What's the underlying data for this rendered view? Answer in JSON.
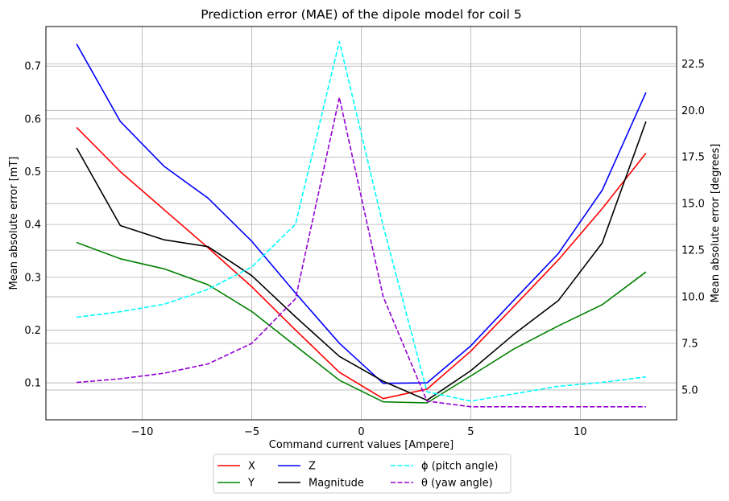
{
  "chart_data": {
    "type": "line",
    "title": "Prediction error (MAE) of the dipole model for coil 5",
    "xlabel": "Command current values [Ampere]",
    "ylabel": "Mean absolute error [mT]",
    "y2label": "Mean absolute error [degrees]",
    "xlim": [
      -14.4,
      14.4
    ],
    "ylim": [
      0.03,
      0.775
    ],
    "y2lim": [
      3.4,
      24.5
    ],
    "xticks": [
      -10,
      -5,
      0,
      5,
      10
    ],
    "xtick_labels": [
      "−10",
      "−5",
      "0",
      "5",
      "10"
    ],
    "yticks": [
      0.1,
      0.2,
      0.3,
      0.4,
      0.5,
      0.6,
      0.7
    ],
    "ytick_labels": [
      "0.1",
      "0.2",
      "0.3",
      "0.4",
      "0.5",
      "0.6",
      "0.7"
    ],
    "y2ticks": [
      5.0,
      7.5,
      10.0,
      12.5,
      15.0,
      17.5,
      20.0,
      22.5
    ],
    "y2tick_labels": [
      "5.0",
      "7.5",
      "10.0",
      "12.5",
      "15.0",
      "17.5",
      "20.0",
      "22.5"
    ],
    "grid": true,
    "legend_position": "below",
    "x": [
      -13,
      -11,
      -9,
      -7,
      -5,
      -3,
      -1,
      1,
      3,
      5,
      7,
      9,
      11,
      13
    ],
    "series": [
      {
        "name": "X",
        "axis": "left",
        "color": "#ff0000",
        "dash": "solid",
        "values": [
          0.584,
          0.5,
          0.428,
          0.356,
          0.282,
          0.2,
          0.12,
          0.07,
          0.088,
          0.16,
          0.246,
          0.333,
          0.43,
          0.535
        ]
      },
      {
        "name": "Y",
        "axis": "left",
        "color": "#008000",
        "dash": "solid",
        "values": [
          0.366,
          0.335,
          0.316,
          0.286,
          0.235,
          0.17,
          0.105,
          0.064,
          0.062,
          0.113,
          0.165,
          0.208,
          0.248,
          0.31
        ]
      },
      {
        "name": "Z",
        "axis": "left",
        "color": "#0000ff",
        "dash": "solid",
        "values": [
          0.742,
          0.595,
          0.51,
          0.45,
          0.368,
          0.27,
          0.175,
          0.099,
          0.1,
          0.17,
          0.258,
          0.345,
          0.465,
          0.65
        ]
      },
      {
        "name": "Magnitude",
        "axis": "left",
        "color": "#000000",
        "dash": "solid",
        "values": [
          0.545,
          0.398,
          0.371,
          0.358,
          0.303,
          0.225,
          0.15,
          0.103,
          0.067,
          0.123,
          0.193,
          0.256,
          0.365,
          0.595
        ]
      },
      {
        "name": "ϕ (pitch angle)",
        "axis": "right",
        "color": "#00ffff",
        "dash": "dashed",
        "values": [
          8.9,
          9.2,
          9.6,
          10.4,
          11.6,
          13.9,
          23.7,
          13.8,
          4.9,
          4.4,
          4.8,
          5.2,
          5.4,
          5.7
        ]
      },
      {
        "name": "θ (yaw angle)",
        "axis": "right",
        "color": "#9400d3",
        "dash": "dashed",
        "values": [
          5.4,
          5.6,
          5.9,
          6.4,
          7.5,
          9.9,
          20.7,
          10.0,
          4.4,
          4.1,
          4.1,
          4.1,
          4.1,
          4.1
        ]
      }
    ]
  }
}
